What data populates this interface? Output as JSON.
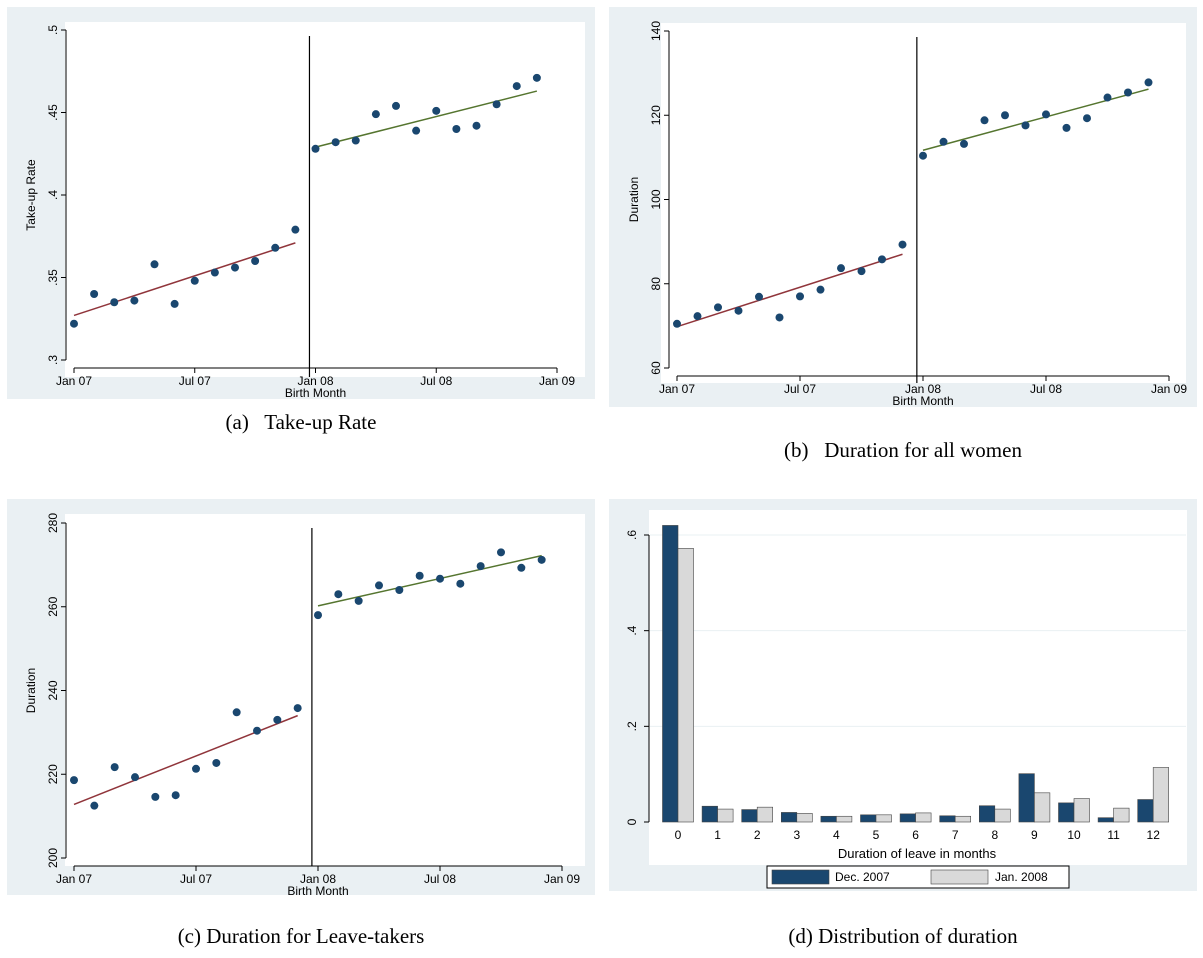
{
  "captions": {
    "a": "(a)   Take-up Rate",
    "b": "(b)   Duration for all women",
    "c": "(c) Duration for Leave-takers",
    "d": "(d) Distribution of duration"
  },
  "colors": {
    "background": "#eaf0f3",
    "plot_background": "#ffffff",
    "marker": "#1a476f",
    "fit_pre": "#90353b",
    "fit_post": "#55752f",
    "bar_dec": "#1a476f",
    "bar_jan": "#d9d9d9",
    "grid": "#eaf0f3"
  },
  "chart_data": [
    {
      "id": "a",
      "type": "scatter",
      "title": "",
      "xlabel": "Birth Month",
      "ylabel": "Take-up Rate",
      "xlim": [
        0,
        24
      ],
      "ylim": [
        0.3,
        0.5
      ],
      "x_ticks": [
        {
          "value": 0,
          "label": "Jan 07"
        },
        {
          "value": 6,
          "label": "Jul 07"
        },
        {
          "value": 12,
          "label": "Jan 08"
        },
        {
          "value": 18,
          "label": "Jul 08"
        },
        {
          "value": 24,
          "label": "Jan 09"
        }
      ],
      "y_ticks": [
        {
          "value": 0.3,
          "label": ".3"
        },
        {
          "value": 0.35,
          "label": ".35"
        },
        {
          "value": 0.4,
          "label": ".4"
        },
        {
          "value": 0.45,
          "label": ".45"
        },
        {
          "value": 0.5,
          "label": ".5"
        }
      ],
      "cutoff": 11.7,
      "points": [
        [
          0,
          0.322
        ],
        [
          1,
          0.34
        ],
        [
          2,
          0.335
        ],
        [
          3,
          0.336
        ],
        [
          4,
          0.358
        ],
        [
          5,
          0.334
        ],
        [
          6,
          0.348
        ],
        [
          7,
          0.353
        ],
        [
          8,
          0.356
        ],
        [
          9,
          0.36
        ],
        [
          10,
          0.368
        ],
        [
          11,
          0.379
        ],
        [
          12,
          0.428
        ],
        [
          13,
          0.432
        ],
        [
          14,
          0.433
        ],
        [
          15,
          0.449
        ],
        [
          16,
          0.454
        ],
        [
          17,
          0.439
        ],
        [
          18,
          0.451
        ],
        [
          19,
          0.44
        ],
        [
          20,
          0.442
        ],
        [
          21,
          0.455
        ],
        [
          22,
          0.466
        ],
        [
          23,
          0.471
        ]
      ],
      "fit_pre": [
        [
          0,
          0.327
        ],
        [
          11,
          0.371
        ]
      ],
      "fit_post": [
        [
          12,
          0.429
        ],
        [
          23,
          0.463
        ]
      ]
    },
    {
      "id": "b",
      "type": "scatter",
      "title": "",
      "xlabel": "Birth Month",
      "ylabel": "Duration",
      "xlim": [
        0,
        24
      ],
      "ylim": [
        60,
        140
      ],
      "x_ticks": [
        {
          "value": 0,
          "label": "Jan 07"
        },
        {
          "value": 6,
          "label": "Jul 07"
        },
        {
          "value": 12,
          "label": "Jan 08"
        },
        {
          "value": 18,
          "label": "Jul 08"
        },
        {
          "value": 24,
          "label": "Jan 09"
        }
      ],
      "y_ticks": [
        {
          "value": 60,
          "label": "60"
        },
        {
          "value": 80,
          "label": "80"
        },
        {
          "value": 100,
          "label": "100"
        },
        {
          "value": 120,
          "label": "120"
        },
        {
          "value": 140,
          "label": "140"
        }
      ],
      "cutoff": 11.7,
      "points": [
        [
          0,
          70.5
        ],
        [
          1,
          72.3
        ],
        [
          2,
          74.4
        ],
        [
          3,
          73.6
        ],
        [
          4,
          76.9
        ],
        [
          5,
          72.0
        ],
        [
          6,
          77.0
        ],
        [
          7,
          78.6
        ],
        [
          8,
          83.7
        ],
        [
          9,
          83.0
        ],
        [
          10,
          85.8
        ],
        [
          11,
          89.3
        ],
        [
          12,
          110.4
        ],
        [
          13,
          113.7
        ],
        [
          14,
          113.2
        ],
        [
          15,
          118.8
        ],
        [
          16,
          120.0
        ],
        [
          17,
          117.6
        ],
        [
          18,
          120.2
        ],
        [
          19,
          117.0
        ],
        [
          20,
          119.3
        ],
        [
          21,
          124.2
        ],
        [
          22,
          125.4
        ],
        [
          23,
          127.8
        ]
      ],
      "fit_pre": [
        [
          0,
          69.8
        ],
        [
          11,
          87.0
        ]
      ],
      "fit_post": [
        [
          12,
          111.7
        ],
        [
          23,
          126.2
        ]
      ]
    },
    {
      "id": "c",
      "type": "scatter",
      "title": "",
      "xlabel": "Birth Month",
      "ylabel": "Duration",
      "xlim": [
        0,
        24
      ],
      "ylim": [
        200,
        280
      ],
      "x_ticks": [
        {
          "value": 0,
          "label": "Jan 07"
        },
        {
          "value": 6,
          "label": "Jul 07"
        },
        {
          "value": 12,
          "label": "Jan 08"
        },
        {
          "value": 18,
          "label": "Jul 08"
        },
        {
          "value": 24,
          "label": "Jan 09"
        }
      ],
      "y_ticks": [
        {
          "value": 200,
          "label": "200"
        },
        {
          "value": 220,
          "label": "220"
        },
        {
          "value": 240,
          "label": "240"
        },
        {
          "value": 260,
          "label": "260"
        },
        {
          "value": 280,
          "label": "280"
        }
      ],
      "cutoff": 11.7,
      "points": [
        [
          0,
          218.6
        ],
        [
          1,
          212.5
        ],
        [
          2,
          221.7
        ],
        [
          3,
          219.3
        ],
        [
          4,
          214.6
        ],
        [
          5,
          215.0
        ],
        [
          6,
          221.3
        ],
        [
          7,
          222.7
        ],
        [
          8,
          234.8
        ],
        [
          9,
          230.4
        ],
        [
          10,
          233.0
        ],
        [
          11,
          235.8
        ],
        [
          12,
          258.0
        ],
        [
          13,
          263.0
        ],
        [
          14,
          261.4
        ],
        [
          15,
          265.1
        ],
        [
          16,
          264.0
        ],
        [
          17,
          267.4
        ],
        [
          18,
          266.7
        ],
        [
          19,
          265.5
        ],
        [
          20,
          269.7
        ],
        [
          21,
          273.0
        ],
        [
          22,
          269.3
        ],
        [
          23,
          271.2
        ]
      ],
      "fit_pre": [
        [
          0,
          212.8
        ],
        [
          11,
          234.0
        ]
      ],
      "fit_post": [
        [
          12,
          260.2
        ],
        [
          23,
          272.2
        ]
      ]
    },
    {
      "id": "d",
      "type": "bar",
      "title": "",
      "xlabel": "Duration of leave in months",
      "ylabel": "",
      "ylim": [
        0,
        0.6
      ],
      "y_ticks": [
        {
          "value": 0,
          "label": "0"
        },
        {
          "value": 0.2,
          "label": ".2"
        },
        {
          "value": 0.4,
          "label": ".4"
        },
        {
          "value": 0.6,
          "label": ".6"
        }
      ],
      "grid": true,
      "legend_position": "bottom",
      "categories": [
        "0",
        "1",
        "2",
        "3",
        "4",
        "5",
        "6",
        "7",
        "8",
        "9",
        "10",
        "11",
        "12"
      ],
      "series": [
        {
          "name": "Dec. 2007",
          "values": [
            0.62,
            0.033,
            0.026,
            0.02,
            0.012,
            0.015,
            0.017,
            0.013,
            0.034,
            0.101,
            0.04,
            0.009,
            0.047
          ]
        },
        {
          "name": "Jan. 2008",
          "values": [
            0.572,
            0.027,
            0.031,
            0.018,
            0.012,
            0.015,
            0.019,
            0.012,
            0.027,
            0.061,
            0.049,
            0.029,
            0.114
          ]
        }
      ]
    }
  ]
}
